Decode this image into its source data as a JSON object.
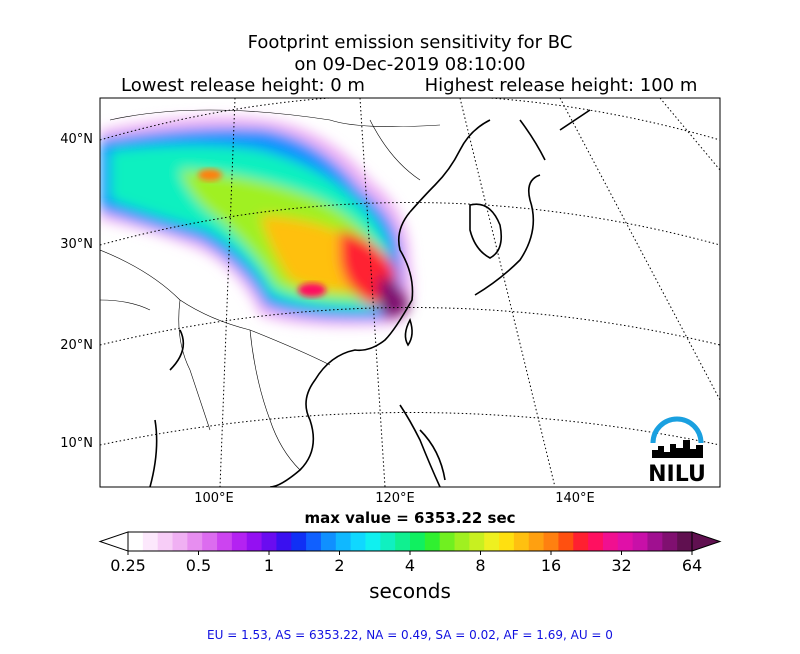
{
  "title": {
    "lines": [
      "Footprint emission sensitivity for BC",
      "on 09-Dec-2019 08:10:00"
    ],
    "release_low": "Lowest release height: 0 m",
    "release_high": "Highest release height: 100 m"
  },
  "map": {
    "lat_labels": [
      "40°N",
      "30°N",
      "20°N",
      "10°N"
    ],
    "lon_labels": [
      "100°E",
      "120°E",
      "140°E"
    ],
    "logo": "NILU"
  },
  "max_value": "max value = 6353.22 sec",
  "colorbar": {
    "scale": "log",
    "range": [
      0.25,
      64
    ],
    "ticks": [
      0.25,
      0.5,
      1,
      2,
      4,
      8,
      16,
      32,
      64
    ],
    "label": "seconds",
    "colors": [
      "#ffffff",
      "#fce8fc",
      "#f7cdf7",
      "#f0b0f3",
      "#e78ef0",
      "#dc6cef",
      "#cc44f0",
      "#b422f2",
      "#9410f2",
      "#6a0cf0",
      "#3a10f0",
      "#1030f5",
      "#1060ff",
      "#1090ff",
      "#10b8ff",
      "#10d8ff",
      "#10f0f0",
      "#10f0c0",
      "#10f090",
      "#10f060",
      "#30f030",
      "#70f020",
      "#a0f020",
      "#c8f020",
      "#eef020",
      "#ffe010",
      "#ffc010",
      "#ffa010",
      "#ff8010",
      "#ff5010",
      "#ff2030",
      "#ff1060",
      "#f01090",
      "#e010a8",
      "#c810a8",
      "#a01090",
      "#801070",
      "#601050"
    ]
  },
  "footer": "EU = 1.53,  AS = 6353.22,  NA = 0.49,  SA = 0.02,  AF = 1.69,  AU = 0"
}
